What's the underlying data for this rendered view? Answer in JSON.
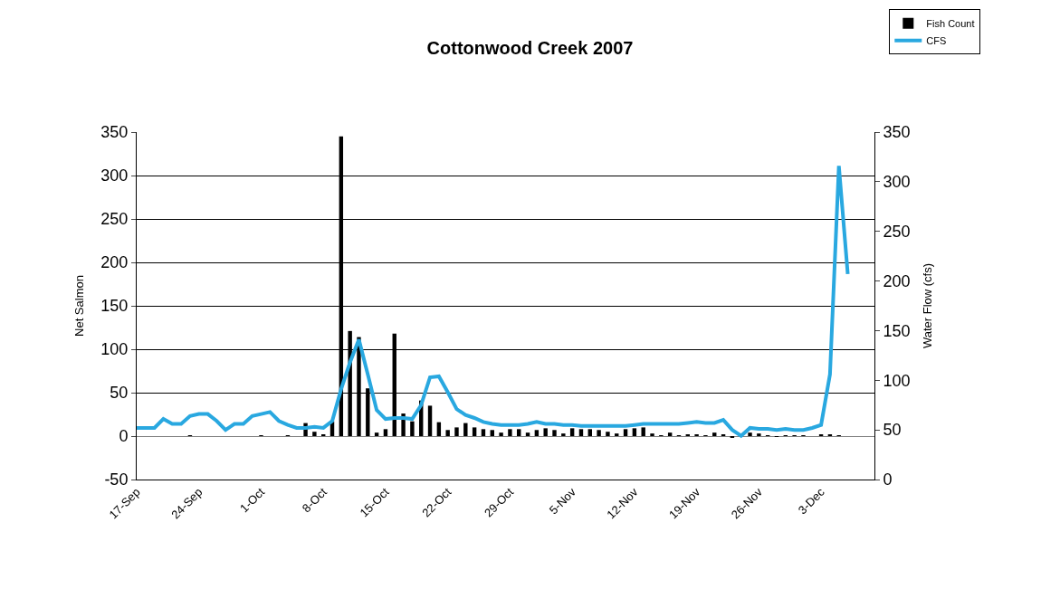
{
  "chart_data": {
    "type": "bar",
    "title": "Cottonwood Creek 2007",
    "ylabel": "Net Salmon",
    "y2label": "Water Flow (cfs)",
    "x": [
      "2007-09-17",
      "2007-09-18",
      "2007-09-19",
      "2007-09-20",
      "2007-09-21",
      "2007-09-22",
      "2007-09-23",
      "2007-09-24",
      "2007-09-25",
      "2007-09-26",
      "2007-09-27",
      "2007-09-28",
      "2007-09-29",
      "2007-09-30",
      "2007-10-01",
      "2007-10-02",
      "2007-10-03",
      "2007-10-04",
      "2007-10-05",
      "2007-10-06",
      "2007-10-07",
      "2007-10-08",
      "2007-10-09",
      "2007-10-10",
      "2007-10-11",
      "2007-10-12",
      "2007-10-13",
      "2007-10-14",
      "2007-10-15",
      "2007-10-16",
      "2007-10-17",
      "2007-10-18",
      "2007-10-19",
      "2007-10-20",
      "2007-10-21",
      "2007-10-22",
      "2007-10-23",
      "2007-10-24",
      "2007-10-25",
      "2007-10-26",
      "2007-10-27",
      "2007-10-28",
      "2007-10-29",
      "2007-10-30",
      "2007-10-31",
      "2007-11-01",
      "2007-11-02",
      "2007-11-03",
      "2007-11-04",
      "2007-11-05",
      "2007-11-06",
      "2007-11-07",
      "2007-11-08",
      "2007-11-09",
      "2007-11-10",
      "2007-11-11",
      "2007-11-12",
      "2007-11-13",
      "2007-11-14",
      "2007-11-15",
      "2007-11-16",
      "2007-11-17",
      "2007-11-18",
      "2007-11-19",
      "2007-11-20",
      "2007-11-21",
      "2007-11-22",
      "2007-11-23",
      "2007-11-24",
      "2007-11-25",
      "2007-11-26",
      "2007-11-27",
      "2007-11-28",
      "2007-11-29",
      "2007-11-30",
      "2007-12-01",
      "2007-12-02",
      "2007-12-03",
      "2007-12-04",
      "2007-12-05",
      "2007-12-06"
    ],
    "series": [
      {
        "name": "Fish Count",
        "color": "#000000",
        "values": [
          0,
          0,
          0,
          0,
          0,
          0,
          1,
          0,
          0,
          0,
          0,
          0,
          0,
          0,
          1,
          0,
          0,
          1,
          0,
          15,
          5,
          2,
          17,
          345,
          121,
          114,
          55,
          4,
          8,
          118,
          26,
          17,
          41,
          35,
          16,
          7,
          10,
          15,
          10,
          8,
          7,
          4,
          8,
          8,
          4,
          7,
          9,
          7,
          3,
          9,
          8,
          8,
          7,
          5,
          3,
          8,
          9,
          10,
          3,
          1,
          4,
          1,
          2,
          2,
          1,
          4,
          2,
          -2,
          0,
          4,
          3,
          1,
          -1,
          1,
          1,
          1,
          0,
          2,
          2,
          1,
          null
        ]
      },
      {
        "name": "CFS",
        "type": "line",
        "axis": "y2",
        "color": "#29a8e0",
        "values": [
          52,
          52,
          52,
          61,
          56,
          56,
          64,
          66,
          66,
          59,
          50,
          56,
          56,
          64,
          66,
          68,
          59,
          55,
          52,
          52,
          53,
          52,
          59,
          91,
          118,
          141,
          106,
          70,
          61,
          62,
          62,
          61,
          75,
          103,
          104,
          88,
          71,
          65,
          62,
          58,
          56,
          55,
          55,
          55,
          56,
          58,
          56,
          56,
          55,
          55,
          54,
          54,
          54,
          54,
          54,
          54,
          55,
          56,
          56,
          56,
          56,
          56,
          57,
          58,
          57,
          57,
          60,
          50,
          44,
          52,
          51,
          51,
          50,
          51,
          50,
          50,
          52,
          55,
          106,
          316,
          207
        ]
      }
    ],
    "xlim": [
      "2007-09-17",
      "2007-12-09"
    ],
    "xticks": [
      {
        "value": "2007-09-17",
        "label": "17-Sep"
      },
      {
        "value": "2007-09-24",
        "label": "24-Sep"
      },
      {
        "value": "2007-10-01",
        "label": "1-Oct"
      },
      {
        "value": "2007-10-08",
        "label": "8-Oct"
      },
      {
        "value": "2007-10-15",
        "label": "15-Oct"
      },
      {
        "value": "2007-10-22",
        "label": "22-Oct"
      },
      {
        "value": "2007-10-29",
        "label": "29-Oct"
      },
      {
        "value": "2007-11-05",
        "label": "5-Nov"
      },
      {
        "value": "2007-11-12",
        "label": "12-Nov"
      },
      {
        "value": "2007-11-19",
        "label": "19-Nov"
      },
      {
        "value": "2007-11-26",
        "label": "26-Nov"
      },
      {
        "value": "2007-12-03",
        "label": "3-Dec"
      }
    ],
    "ylim": [
      -50,
      350
    ],
    "yticks": [
      -50,
      0,
      50,
      100,
      150,
      200,
      250,
      300,
      350
    ],
    "y2lim": [
      0,
      350
    ],
    "y2ticks": [
      0,
      50,
      100,
      150,
      200,
      250,
      300,
      350
    ],
    "grid": "y",
    "legend": "top right"
  }
}
